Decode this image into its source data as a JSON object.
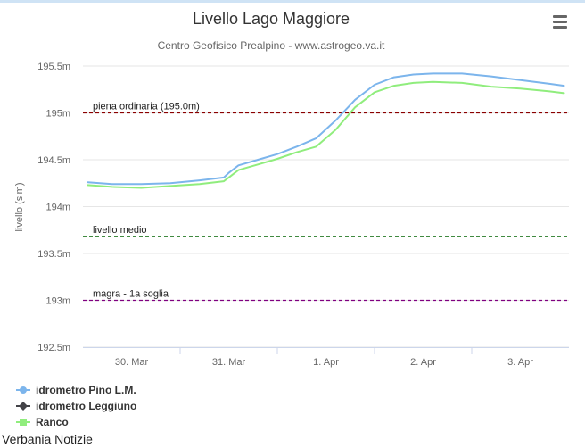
{
  "menu_icon": "hamburger-menu-icon",
  "watermark": "Verbania Notizie",
  "chart_data": {
    "type": "line",
    "title": "Livello Lago Maggiore",
    "subtitle": "Centro Geofisico Prealpino - www.astrogeo.va.it",
    "ylabel": "livello (slm)",
    "xlabel": "",
    "ylim": [
      192.5,
      195.5
    ],
    "xlim": [
      0,
      5
    ],
    "yticks": [
      {
        "value": 195.5,
        "label": "195.5m"
      },
      {
        "value": 195,
        "label": "195m"
      },
      {
        "value": 194.5,
        "label": "194.5m"
      },
      {
        "value": 194,
        "label": "194m"
      },
      {
        "value": 193.5,
        "label": "193.5m"
      },
      {
        "value": 193,
        "label": "193m"
      },
      {
        "value": 192.5,
        "label": "192.5m"
      }
    ],
    "xticks": [
      {
        "value": 0.5,
        "label": "30. Mar"
      },
      {
        "value": 1.5,
        "label": "31. Mar"
      },
      {
        "value": 2.5,
        "label": "1. Apr"
      },
      {
        "value": 3.5,
        "label": "2. Apr"
      },
      {
        "value": 4.5,
        "label": "3. Apr"
      }
    ],
    "grid": true,
    "legend_position": "bottom-left",
    "plot_lines": [
      {
        "label": "piena ordinaria (195.0m)",
        "value": 195.0,
        "color": "#8b0000"
      },
      {
        "label": "livello medio",
        "value": 193.68,
        "color": "#006400"
      },
      {
        "label": "magra - 1a soglia",
        "value": 193.0,
        "color": "#800080"
      }
    ],
    "series": [
      {
        "name": "idrometro Pino L.M.",
        "color": "#7cb5ec",
        "marker": "circle",
        "x": [
          0.05,
          0.3,
          0.6,
          0.9,
          1.2,
          1.45,
          1.5,
          1.6,
          1.8,
          2.0,
          2.2,
          2.4,
          2.6,
          2.8,
          3.0,
          3.2,
          3.4,
          3.6,
          3.9,
          4.2,
          4.5,
          4.8,
          4.95
        ],
        "y": [
          194.26,
          194.24,
          194.24,
          194.25,
          194.28,
          194.31,
          194.36,
          194.44,
          194.5,
          194.56,
          194.64,
          194.73,
          194.92,
          195.14,
          195.3,
          195.38,
          195.41,
          195.42,
          195.42,
          195.39,
          195.35,
          195.31,
          195.29
        ]
      },
      {
        "name": "idrometro Leggiuno",
        "color": "#434348",
        "marker": "diamond",
        "x": [],
        "y": []
      },
      {
        "name": "Ranco",
        "color": "#90ed7d",
        "marker": "square",
        "x": [
          0.05,
          0.3,
          0.6,
          0.9,
          1.2,
          1.45,
          1.5,
          1.6,
          1.8,
          2.0,
          2.2,
          2.4,
          2.6,
          2.8,
          3.0,
          3.2,
          3.4,
          3.6,
          3.9,
          4.2,
          4.5,
          4.8,
          4.95
        ],
        "y": [
          194.23,
          194.21,
          194.2,
          194.22,
          194.24,
          194.27,
          194.31,
          194.39,
          194.45,
          194.51,
          194.58,
          194.64,
          194.82,
          195.06,
          195.22,
          195.29,
          195.32,
          195.33,
          195.32,
          195.28,
          195.26,
          195.23,
          195.21
        ]
      }
    ]
  }
}
